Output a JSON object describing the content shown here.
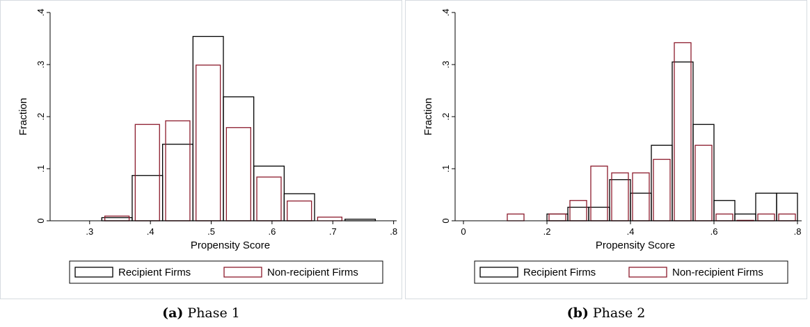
{
  "figure": {
    "legend_labels": [
      "Recipient Firms",
      "Non-recipient Firms"
    ],
    "colors": {
      "recipient": "#000000",
      "nonrecipient": "#8b1a2b",
      "frame": "#d6dbe0"
    }
  },
  "chart_data": [
    {
      "type": "bar",
      "panel_label": "(a)",
      "caption": "Phase 1",
      "xlabel": "Propensity Score",
      "ylabel": "Fraction",
      "xlim": [
        0.235,
        0.805
      ],
      "ylim": [
        0,
        0.4
      ],
      "xticks": [
        0.3,
        0.4,
        0.5,
        0.6,
        0.7,
        0.8
      ],
      "xtick_labels": [
        ".3",
        ".4",
        ".5",
        ".6",
        ".7",
        ".8"
      ],
      "yticks": [
        0,
        0.1,
        0.2,
        0.3,
        0.4
      ],
      "ytick_labels": [
        "0",
        ".1",
        ".2",
        ".3",
        ".4"
      ],
      "grid": false,
      "legend_position": "bottom",
      "series": [
        {
          "name": "Recipient Firms",
          "bins": [
            [
              0.32,
              0.37,
              0.006
            ],
            [
              0.37,
              0.42,
              0.087
            ],
            [
              0.42,
              0.47,
              0.147
            ],
            [
              0.47,
              0.52,
              0.354
            ],
            [
              0.52,
              0.57,
              0.238
            ],
            [
              0.57,
              0.62,
              0.105
            ],
            [
              0.62,
              0.67,
              0.052
            ],
            [
              0.72,
              0.77,
              0.003
            ]
          ]
        },
        {
          "name": "Non-recipient Firms",
          "bins": [
            [
              0.325,
              0.365,
              0.009
            ],
            [
              0.375,
              0.415,
              0.185
            ],
            [
              0.425,
              0.465,
              0.192
            ],
            [
              0.475,
              0.515,
              0.299
            ],
            [
              0.525,
              0.565,
              0.179
            ],
            [
              0.575,
              0.615,
              0.084
            ],
            [
              0.625,
              0.665,
              0.038
            ],
            [
              0.675,
              0.715,
              0.007
            ]
          ]
        }
      ]
    },
    {
      "type": "bar",
      "panel_label": "(b)",
      "caption": "Phase 2",
      "xlabel": "Propensity Score",
      "ylabel": "Fraction",
      "xlim": [
        -0.02,
        0.81
      ],
      "ylim": [
        0,
        0.4
      ],
      "xticks": [
        0,
        0.2,
        0.4,
        0.6,
        0.8
      ],
      "xtick_labels": [
        "0",
        ".2",
        ".4",
        ".6",
        ".8"
      ],
      "yticks": [
        0,
        0.1,
        0.2,
        0.3,
        0.4
      ],
      "ytick_labels": [
        "0",
        ".1",
        ".2",
        ".3",
        ".4"
      ],
      "grid": false,
      "legend_position": "bottom",
      "series": [
        {
          "name": "Recipient Firms",
          "bins": [
            [
              0.2,
              0.25,
              0.013
            ],
            [
              0.25,
              0.3,
              0.026
            ],
            [
              0.3,
              0.35,
              0.026
            ],
            [
              0.35,
              0.4,
              0.079
            ],
            [
              0.4,
              0.45,
              0.053
            ],
            [
              0.45,
              0.5,
              0.145
            ],
            [
              0.5,
              0.55,
              0.305
            ],
            [
              0.55,
              0.6,
              0.185
            ],
            [
              0.6,
              0.65,
              0.039
            ],
            [
              0.65,
              0.7,
              0.013
            ],
            [
              0.7,
              0.75,
              0.053
            ],
            [
              0.75,
              0.8,
              0.053
            ]
          ]
        },
        {
          "name": "Non-recipient Firms",
          "bins": [
            [
              0.105,
              0.145,
              0.013
            ],
            [
              0.205,
              0.245,
              0.013
            ],
            [
              0.255,
              0.295,
              0.039
            ],
            [
              0.305,
              0.345,
              0.105
            ],
            [
              0.355,
              0.395,
              0.092
            ],
            [
              0.405,
              0.445,
              0.092
            ],
            [
              0.455,
              0.495,
              0.118
            ],
            [
              0.505,
              0.545,
              0.342
            ],
            [
              0.555,
              0.595,
              0.145
            ],
            [
              0.605,
              0.645,
              0.013
            ],
            [
              0.655,
              0.695,
              0.0
            ],
            [
              0.705,
              0.745,
              0.013
            ],
            [
              0.755,
              0.795,
              0.013
            ]
          ]
        }
      ]
    }
  ]
}
